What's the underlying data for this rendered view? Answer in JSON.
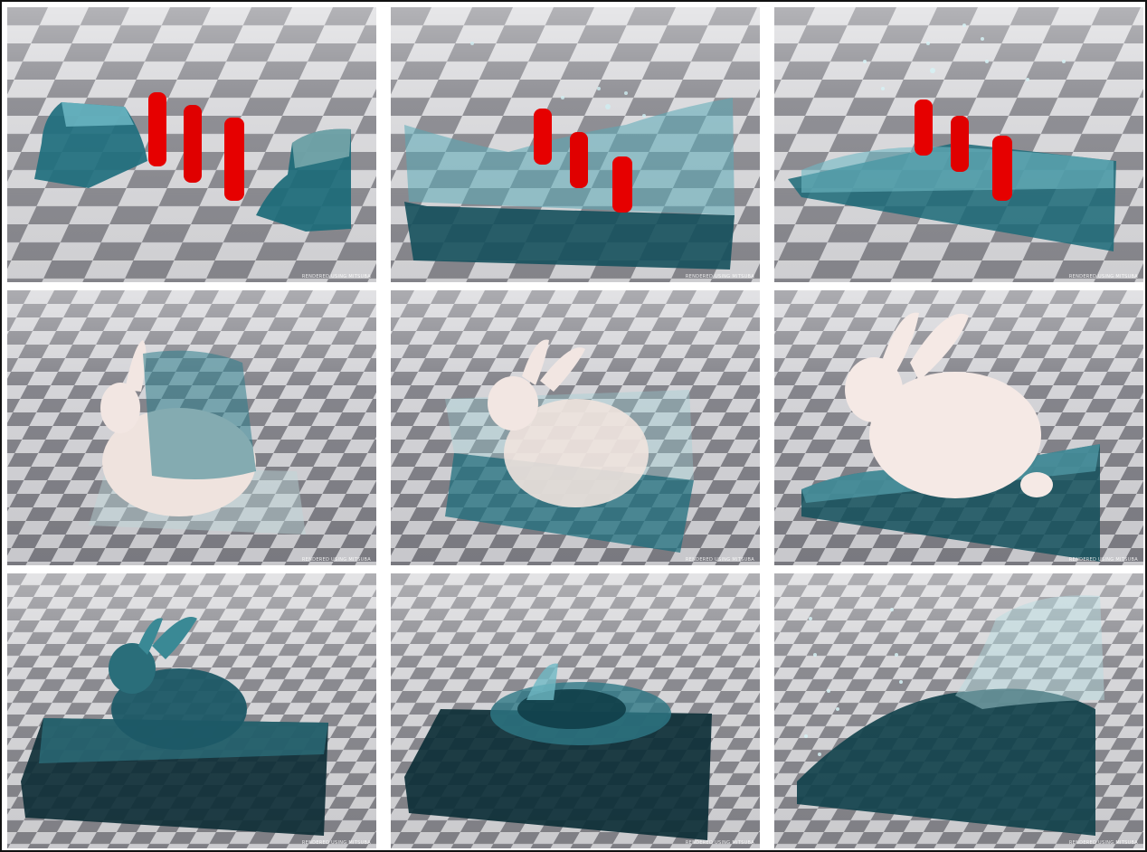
{
  "figure": {
    "panels": [
      {
        "id": "r1c1",
        "scene": "dam-break-two-blocks-with-cylinders",
        "stage": "initial",
        "watermark": "RENDERED USING MITSUBA"
      },
      {
        "id": "r1c2",
        "scene": "dam-break-two-blocks-with-cylinders",
        "stage": "collision",
        "watermark": "RENDERED USING MITSUBA"
      },
      {
        "id": "r1c3",
        "scene": "dam-break-two-blocks-with-cylinders",
        "stage": "splash",
        "watermark": "RENDERED USING MITSUBA"
      },
      {
        "id": "r2c1",
        "scene": "water-on-solid-bunny",
        "stage": "initial",
        "watermark": "RENDERED USING MITSUBA"
      },
      {
        "id": "r2c2",
        "scene": "water-on-solid-bunny",
        "stage": "mid",
        "watermark": "RENDERED USING MITSUBA"
      },
      {
        "id": "r2c3",
        "scene": "water-on-solid-bunny",
        "stage": "late",
        "watermark": "RENDERED USING MITSUBA"
      },
      {
        "id": "r3c1",
        "scene": "liquid-bunny-dropping",
        "stage": "initial",
        "watermark": "RENDERED USING MITSUBA"
      },
      {
        "id": "r3c2",
        "scene": "liquid-bunny-dropping",
        "stage": "impact",
        "watermark": "RENDERED USING MITSUBA"
      },
      {
        "id": "r3c3",
        "scene": "liquid-bunny-dropping",
        "stage": "splash",
        "watermark": "RENDERED USING MITSUBA"
      }
    ],
    "colors": {
      "floor_light": "#d9d9dc",
      "floor_dark": "#8a8a90",
      "water": "#2f8fa0",
      "water_dark": "#0d3a44",
      "cylinder": "#e60000",
      "bunny": "#f2e6e2"
    }
  }
}
